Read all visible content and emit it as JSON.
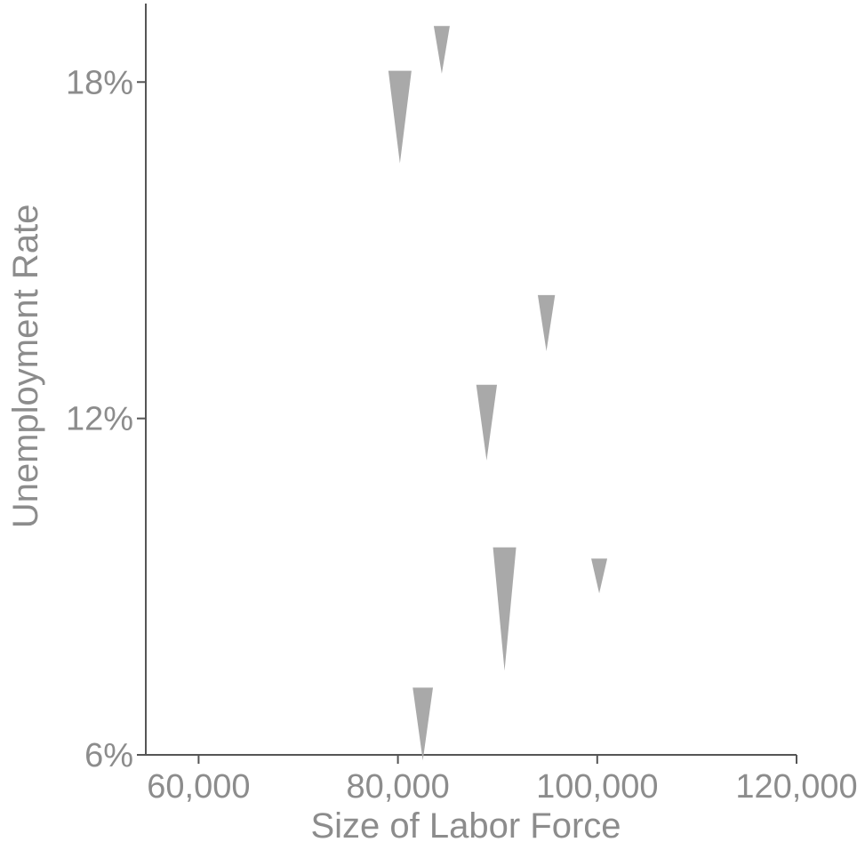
{
  "chart_data": {
    "type": "scatter",
    "marker": "downward-triangle",
    "xlabel": "Size of Labor Force",
    "ylabel": "Unemployment Rate",
    "xlim": [
      54700,
      120000
    ],
    "ylim": [
      6,
      19.4
    ],
    "x_ticks": [
      {
        "value": 60000,
        "label": "60,000"
      },
      {
        "value": 80000,
        "label": "80,000"
      },
      {
        "value": 100000,
        "label": "100,000"
      },
      {
        "value": 120000,
        "label": "120,000"
      }
    ],
    "y_ticks": [
      {
        "value": 6,
        "label": "6%"
      },
      {
        "value": 12,
        "label": "12%"
      },
      {
        "value": 18,
        "label": "18%"
      }
    ],
    "points": [
      {
        "x": 84400,
        "y": 19.0,
        "change": 0.85,
        "highlight": false
      },
      {
        "x": 80200,
        "y": 18.2,
        "change": 1.65,
        "highlight": false
      },
      {
        "x": 94900,
        "y": 14.2,
        "change": 1.0,
        "highlight": false
      },
      {
        "x": 88900,
        "y": 12.6,
        "change": 1.35,
        "highlight": false
      },
      {
        "x": 90700,
        "y": 9.7,
        "change": 2.2,
        "highlight": false
      },
      {
        "x": 100200,
        "y": 9.5,
        "change": 0.62,
        "highlight": false
      },
      {
        "x": 82500,
        "y": 7.2,
        "change": 1.3,
        "highlight": false
      }
    ],
    "colors": {
      "default": "#a9a9a9",
      "highlight": "#000000"
    },
    "grid": false,
    "legend": "none"
  }
}
